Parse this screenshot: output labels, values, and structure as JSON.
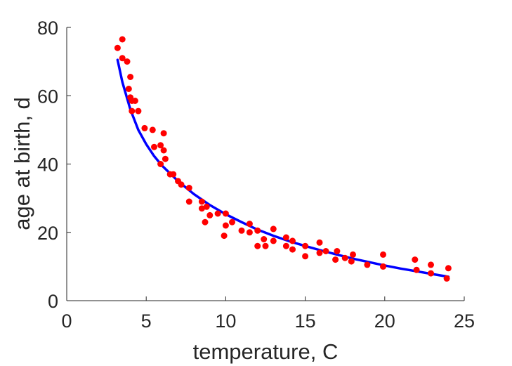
{
  "chart_data": {
    "type": "scatter",
    "title": "",
    "xlabel": "temperature, C",
    "ylabel": "age at birth, d",
    "xlim": [
      0,
      25
    ],
    "ylim": [
      0,
      80
    ],
    "xticks": [
      0,
      5,
      10,
      15,
      20,
      25
    ],
    "yticks": [
      0,
      20,
      40,
      60,
      80
    ],
    "grid": false,
    "legend": "none",
    "series": [
      {
        "kind": "scatter",
        "color": "#ff0000",
        "x": [
          3.2,
          3.5,
          3.5,
          3.8,
          3.9,
          4.0,
          4.0,
          4.1,
          4.1,
          4.3,
          4.5,
          4.9,
          5.4,
          5.5,
          5.9,
          5.9,
          6.1,
          6.1,
          6.2,
          6.5,
          6.7,
          7.0,
          7.2,
          7.7,
          7.7,
          8.5,
          8.5,
          8.7,
          8.8,
          9.0,
          9.5,
          9.9,
          10.0,
          10.0,
          10.4,
          11.0,
          11.5,
          11.5,
          12.0,
          12.0,
          12.4,
          12.5,
          13.0,
          13.0,
          13.8,
          13.8,
          14.2,
          14.2,
          15.0,
          15.0,
          15.9,
          15.9,
          16.3,
          16.9,
          17.0,
          17.5,
          17.9,
          18.0,
          18.9,
          19.9,
          19.9,
          21.9,
          22.0,
          22.9,
          22.9,
          23.9,
          24.0
        ],
        "y": [
          74.0,
          76.5,
          71.0,
          70.0,
          62.0,
          65.5,
          59.5,
          55.5,
          58.5,
          58.5,
          55.5,
          50.5,
          50.0,
          45.0,
          45.5,
          40.0,
          49.0,
          44.0,
          41.5,
          37.0,
          37.0,
          35.0,
          34.0,
          33.0,
          29.0,
          27.0,
          29.0,
          23.0,
          27.5,
          25.0,
          25.5,
          19.0,
          22.0,
          25.5,
          23.0,
          20.5,
          20.0,
          22.5,
          20.5,
          16.0,
          18.0,
          16.0,
          21.0,
          17.5,
          16.0,
          18.5,
          15.0,
          17.5,
          16.0,
          13.0,
          14.0,
          17.0,
          14.5,
          12.0,
          14.5,
          12.5,
          11.5,
          13.5,
          10.5,
          10.0,
          13.5,
          12.0,
          9.0,
          10.5,
          8.0,
          6.5,
          9.5
        ]
      },
      {
        "kind": "line",
        "color": "#0000ff",
        "x": [
          3.2,
          3.5,
          4.0,
          4.5,
          5.0,
          5.5,
          6.0,
          7.0,
          8.0,
          9.0,
          10.0,
          11.0,
          12.0,
          13.0,
          14.0,
          15.0,
          16.0,
          17.0,
          18.0,
          19.0,
          20.0,
          21.0,
          22.0,
          23.0,
          24.0
        ],
        "y": [
          70.5,
          64.0,
          56.0,
          50.0,
          45.8,
          42.3,
          39.5,
          35.0,
          31.2,
          28.0,
          25.3,
          23.0,
          20.8,
          19.0,
          17.4,
          16.0,
          14.7,
          13.5,
          12.3,
          11.3,
          10.3,
          9.4,
          8.6,
          7.8,
          7.0
        ]
      }
    ]
  }
}
